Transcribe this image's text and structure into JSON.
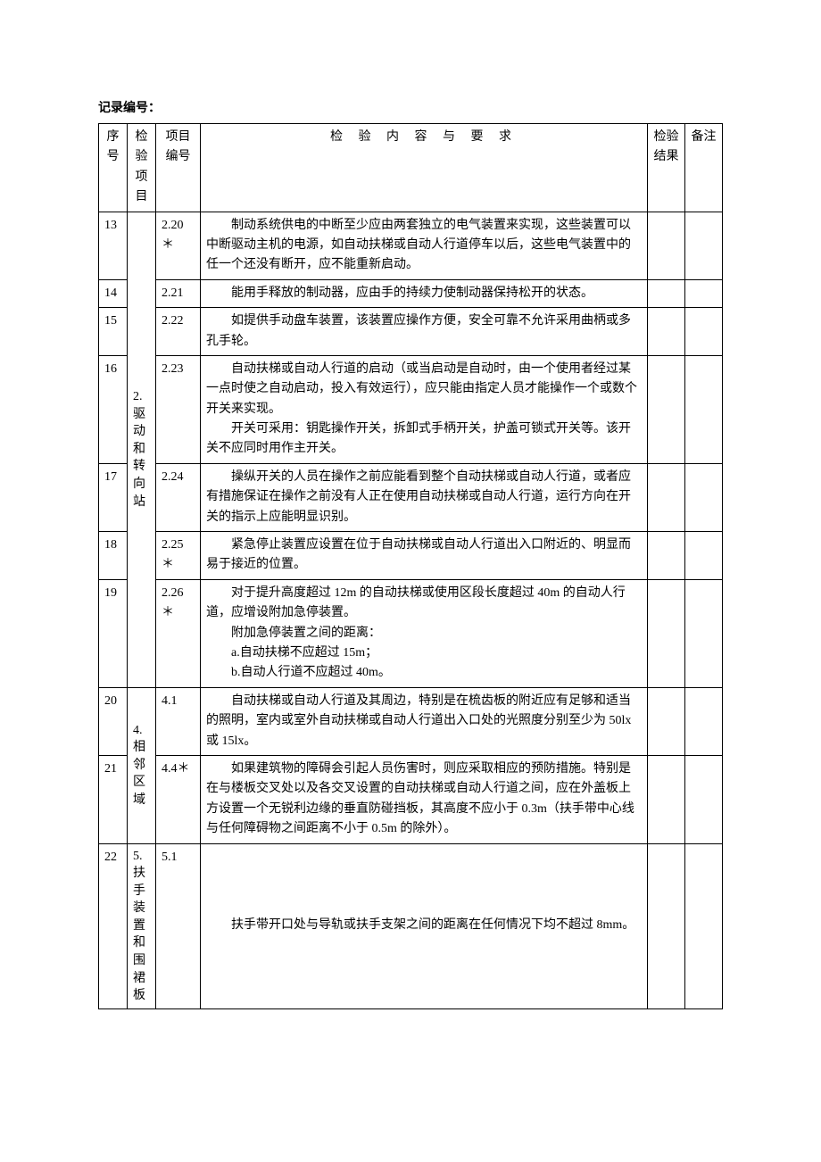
{
  "header_label": "记录编号：",
  "columns": {
    "seq": "序号",
    "category": "检验项目",
    "item": "项目编号",
    "content": "检 验 内 容 与 要 求",
    "result": "检验结果",
    "remark": "备注"
  },
  "categories": {
    "cat2": "2.驱动和转向站",
    "cat4": "4.相邻区域",
    "cat5": "5.扶手装置和围裙板"
  },
  "rows": [
    {
      "seq": "13",
      "item": "2.20＊",
      "content": "　　制动系统供电的中断至少应由两套独立的电气装置来实现，这些装置可以中断驱动主机的电源，如自动扶梯或自动人行道停车以后，这些电气装置中的任一个还没有断开，应不能重新启动。"
    },
    {
      "seq": "14",
      "item": "2.21",
      "content": "　　能用手释放的制动器，应由手的持续力使制动器保持松开的状态。"
    },
    {
      "seq": "15",
      "item": "2.22",
      "content": "　　如提供手动盘车装置，该装置应操作方便，安全可靠不允许采用曲柄或多孔手轮。"
    },
    {
      "seq": "16",
      "item": "2.23",
      "content": "　　自动扶梯或自动人行道的启动（或当启动是自动时，由一个使用者经过某一点时使之自动启动，投入有效运行），应只能由指定人员才能操作一个或数个开关来实现。\n　　开关可采用：钥匙操作开关，拆卸式手柄开关，护盖可锁式开关等。该开关不应同时用作主开关。"
    },
    {
      "seq": "17",
      "item": "2.24",
      "content": "　　操纵开关的人员在操作之前应能看到整个自动扶梯或自动人行道，或者应有措施保证在操作之前没有人正在使用自动扶梯或自动人行道，运行方向在开关的指示上应能明显识别。"
    },
    {
      "seq": "18",
      "item": "2.25＊",
      "content": "　　紧急停止装置应设置在位于自动扶梯或自动人行道出入口附近的、明显而易于接近的位置。"
    },
    {
      "seq": "19",
      "item": "2.26＊",
      "content": "　　对于提升高度超过 12m 的自动扶梯或使用区段长度超过 40m 的自动人行道，应增设附加急停装置。\n　　附加急停装置之间的距离：\n　　a.自动扶梯不应超过 15m；\n　　b.自动人行道不应超过 40m。"
    },
    {
      "seq": "20",
      "item": "4.1",
      "content": "　　自动扶梯或自动人行道及其周边，特别是在梳齿板的附近应有足够和适当的照明，室内或室外自动扶梯或自动人行道出入口处的光照度分别至少为 50lx 或 15lx。"
    },
    {
      "seq": "21",
      "item": "4.4＊",
      "content": "　　如果建筑物的障碍会引起人员伤害时，则应采取相应的预防措施。特别是在与楼板交叉处以及各交叉设置的自动扶梯或自动人行道之间，应在外盖板上方设置一个无锐利边缘的垂直防碰挡板，其高度不应小于 0.3m（扶手带中心线与任何障碍物之间距离不小于 0.5m 的除外）。"
    },
    {
      "seq": "22",
      "item": "5.1",
      "content": "　　扶手带开口处与导轨或扶手支架之间的距离在任何情况下均不超过 8mm。"
    }
  ]
}
